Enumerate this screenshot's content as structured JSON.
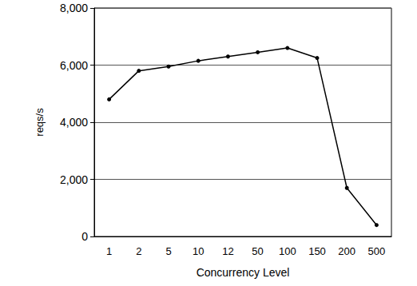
{
  "chart_data": {
    "type": "line",
    "x_label": "Concurrency Level",
    "y_label": "reqs/s",
    "categories": [
      "1",
      "2",
      "5",
      "10",
      "12",
      "50",
      "100",
      "150",
      "200",
      "500"
    ],
    "values": [
      4800,
      5800,
      5950,
      6150,
      6300,
      6450,
      6600,
      6250,
      1700,
      400
    ],
    "color": "#000000",
    "marker": "circle",
    "ylim": [
      0,
      8000
    ],
    "yticks": [
      0,
      {
        "value": 2000,
        "label": "2,000"
      },
      {
        "value": 4000,
        "label": "4,000"
      },
      {
        "value": 6000,
        "label": "6,000"
      },
      {
        "value": 8000,
        "label": "8,000"
      }
    ],
    "grid": true
  }
}
